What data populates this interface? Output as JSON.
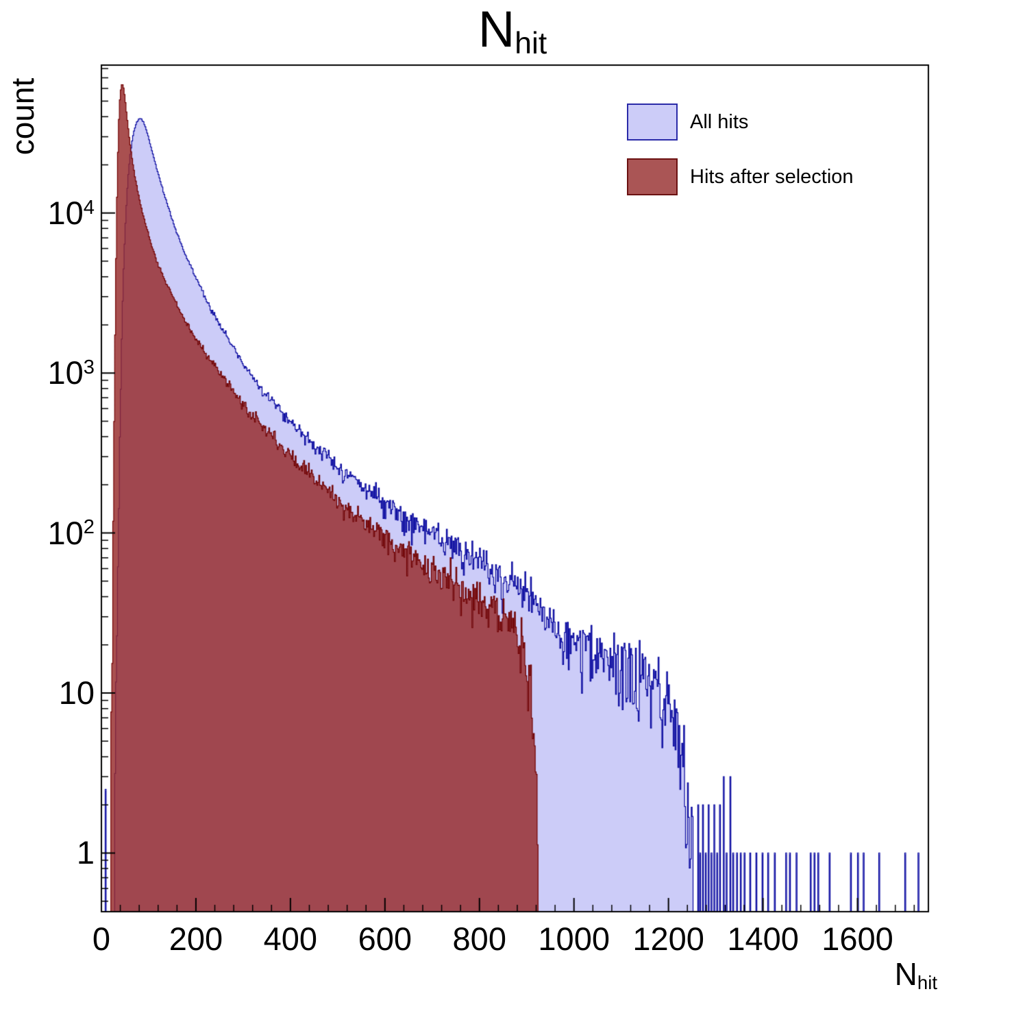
{
  "title": {
    "main": "N",
    "sub": "hit"
  },
  "axes": {
    "x": {
      "label_main": "N",
      "label_sub": "hit",
      "min": 0,
      "max": 1750,
      "major_ticks": [
        0,
        200,
        400,
        600,
        800,
        1000,
        1200,
        1400,
        1600
      ],
      "minor_step": 40
    },
    "y": {
      "label": "count",
      "scale": "log",
      "min": 0.43,
      "max": 84000,
      "tick_labels": [
        {
          "v": 1,
          "base": "1",
          "exp": ""
        },
        {
          "v": 10,
          "base": "10",
          "exp": ""
        },
        {
          "v": 100,
          "base": "10",
          "exp": "2"
        },
        {
          "v": 1000,
          "base": "10",
          "exp": "3"
        },
        {
          "v": 10000,
          "base": "10",
          "exp": "4"
        }
      ]
    }
  },
  "legend": {
    "items": [
      {
        "label": "All hits",
        "fill": "#ccccf8",
        "border": "#2a2aa8"
      },
      {
        "label": "Hits after selection",
        "fill": "#aa5555",
        "border": "#6b1111"
      }
    ]
  },
  "chart_data": {
    "type": "histogram",
    "title": "N_hit",
    "xlabel": "N_hit",
    "ylabel": "count",
    "yscale": "log",
    "xlim": [
      0,
      1750
    ],
    "ylim": [
      0.43,
      84000
    ],
    "bin_width": 2,
    "series": [
      {
        "name": "All hits",
        "fill": "#ccccf8",
        "line": "#00009c",
        "anchors": [
          [
            26,
            0.5
          ],
          [
            28,
            1.5
          ],
          [
            30,
            4
          ],
          [
            33,
            20
          ],
          [
            36,
            90
          ],
          [
            39,
            400
          ],
          [
            42,
            1200
          ],
          [
            45,
            2800
          ],
          [
            48,
            5500
          ],
          [
            52,
            10000
          ],
          [
            56,
            16000
          ],
          [
            60,
            22000
          ],
          [
            65,
            28500
          ],
          [
            70,
            33500
          ],
          [
            75,
            37000
          ],
          [
            80,
            39000
          ],
          [
            85,
            38500
          ],
          [
            90,
            36500
          ],
          [
            95,
            33000
          ],
          [
            100,
            29500
          ],
          [
            108,
            24000
          ],
          [
            116,
            19500
          ],
          [
            124,
            16000
          ],
          [
            132,
            13300
          ],
          [
            140,
            11200
          ],
          [
            150,
            9100
          ],
          [
            160,
            7500
          ],
          [
            170,
            6300
          ],
          [
            180,
            5300
          ],
          [
            190,
            4550
          ],
          [
            200,
            3950
          ],
          [
            215,
            3200
          ],
          [
            230,
            2600
          ],
          [
            245,
            2150
          ],
          [
            260,
            1800
          ],
          [
            280,
            1430
          ],
          [
            300,
            1150
          ],
          [
            320,
            950
          ],
          [
            340,
            800
          ],
          [
            360,
            680
          ],
          [
            380,
            580
          ],
          [
            400,
            500
          ],
          [
            425,
            420
          ],
          [
            450,
            355
          ],
          [
            475,
            305
          ],
          [
            500,
            262
          ],
          [
            525,
            228
          ],
          [
            550,
            200
          ],
          [
            575,
            176
          ],
          [
            600,
            155
          ],
          [
            625,
            137
          ],
          [
            650,
            122
          ],
          [
            675,
            109
          ],
          [
            700,
            98
          ],
          [
            725,
            88
          ],
          [
            750,
            79
          ],
          [
            775,
            71
          ],
          [
            800,
            64
          ],
          [
            825,
            58
          ],
          [
            850,
            52
          ],
          [
            875,
            47
          ],
          [
            900,
            42
          ],
          [
            925,
            35
          ],
          [
            950,
            28
          ],
          [
            975,
            23
          ],
          [
            1000,
            20
          ],
          [
            1030,
            18
          ],
          [
            1060,
            16
          ],
          [
            1090,
            15
          ],
          [
            1120,
            14
          ],
          [
            1150,
            13
          ],
          [
            1175,
            11
          ],
          [
            1200,
            9
          ],
          [
            1210,
            7
          ],
          [
            1220,
            5
          ],
          [
            1230,
            3.5
          ],
          [
            1240,
            2.4
          ],
          [
            1250,
            1.6
          ],
          [
            1258,
            1
          ]
        ],
        "sparse": [
          [
            8,
            2.5
          ],
          [
            1262,
            2
          ],
          [
            1266,
            1
          ],
          [
            1272,
            2
          ],
          [
            1278,
            1
          ],
          [
            1284,
            2
          ],
          [
            1290,
            1
          ],
          [
            1296,
            2
          ],
          [
            1302,
            1
          ],
          [
            1308,
            2
          ],
          [
            1316,
            3
          ],
          [
            1322,
            1
          ],
          [
            1330,
            3
          ],
          [
            1336,
            1
          ],
          [
            1344,
            1
          ],
          [
            1352,
            1
          ],
          [
            1360,
            1
          ],
          [
            1372,
            1
          ],
          [
            1385,
            1
          ],
          [
            1398,
            1
          ],
          [
            1410,
            1
          ],
          [
            1424,
            1
          ],
          [
            1448,
            1
          ],
          [
            1456,
            1
          ],
          [
            1470,
            1
          ],
          [
            1500,
            1
          ],
          [
            1508,
            1
          ],
          [
            1516,
            1
          ],
          [
            1540,
            1
          ],
          [
            1585,
            1
          ],
          [
            1600,
            1
          ],
          [
            1612,
            1
          ],
          [
            1645,
            1
          ],
          [
            1700,
            1
          ],
          [
            1728,
            1
          ]
        ]
      },
      {
        "name": "Hits after selection",
        "fill": "rgba(150,42,42,0.82)",
        "line": "#700000",
        "anchors": [
          [
            16,
            0.5
          ],
          [
            18,
            1.2
          ],
          [
            20,
            3
          ],
          [
            22,
            10
          ],
          [
            24,
            45
          ],
          [
            26,
            250
          ],
          [
            28,
            1000
          ],
          [
            30,
            3200
          ],
          [
            32,
            8500
          ],
          [
            34,
            18000
          ],
          [
            36,
            32000
          ],
          [
            38,
            46000
          ],
          [
            40,
            56000
          ],
          [
            42,
            62000
          ],
          [
            44,
            64000
          ],
          [
            46,
            62500
          ],
          [
            48,
            58000
          ],
          [
            50,
            52000
          ],
          [
            53,
            43000
          ],
          [
            56,
            35500
          ],
          [
            60,
            28000
          ],
          [
            64,
            23000
          ],
          [
            68,
            19200
          ],
          [
            72,
            16400
          ],
          [
            76,
            14200
          ],
          [
            80,
            12500
          ],
          [
            85,
            10700
          ],
          [
            90,
            9300
          ],
          [
            95,
            8200
          ],
          [
            100,
            7300
          ],
          [
            108,
            6100
          ],
          [
            116,
            5200
          ],
          [
            124,
            4500
          ],
          [
            132,
            3950
          ],
          [
            140,
            3500
          ],
          [
            150,
            3020
          ],
          [
            160,
            2640
          ],
          [
            170,
            2330
          ],
          [
            180,
            2070
          ],
          [
            190,
            1850
          ],
          [
            200,
            1660
          ],
          [
            215,
            1410
          ],
          [
            230,
            1210
          ],
          [
            245,
            1050
          ],
          [
            260,
            915
          ],
          [
            280,
            765
          ],
          [
            300,
            645
          ],
          [
            320,
            550
          ],
          [
            340,
            470
          ],
          [
            360,
            405
          ],
          [
            380,
            350
          ],
          [
            400,
            305
          ],
          [
            425,
            258
          ],
          [
            450,
            220
          ],
          [
            475,
            189
          ],
          [
            500,
            163
          ],
          [
            525,
            141
          ],
          [
            550,
            123
          ],
          [
            575,
            108
          ],
          [
            600,
            95
          ],
          [
            625,
            84
          ],
          [
            650,
            74
          ],
          [
            675,
            66
          ],
          [
            700,
            59
          ],
          [
            725,
            53
          ],
          [
            750,
            47
          ],
          [
            775,
            42
          ],
          [
            800,
            38
          ],
          [
            825,
            34
          ],
          [
            850,
            30
          ],
          [
            870,
            26
          ],
          [
            885,
            22
          ],
          [
            895,
            17
          ],
          [
            905,
            12
          ],
          [
            912,
            7
          ],
          [
            918,
            3.5
          ],
          [
            922,
            1.6
          ],
          [
            925,
            0.8
          ]
        ],
        "sparse": []
      }
    ]
  }
}
